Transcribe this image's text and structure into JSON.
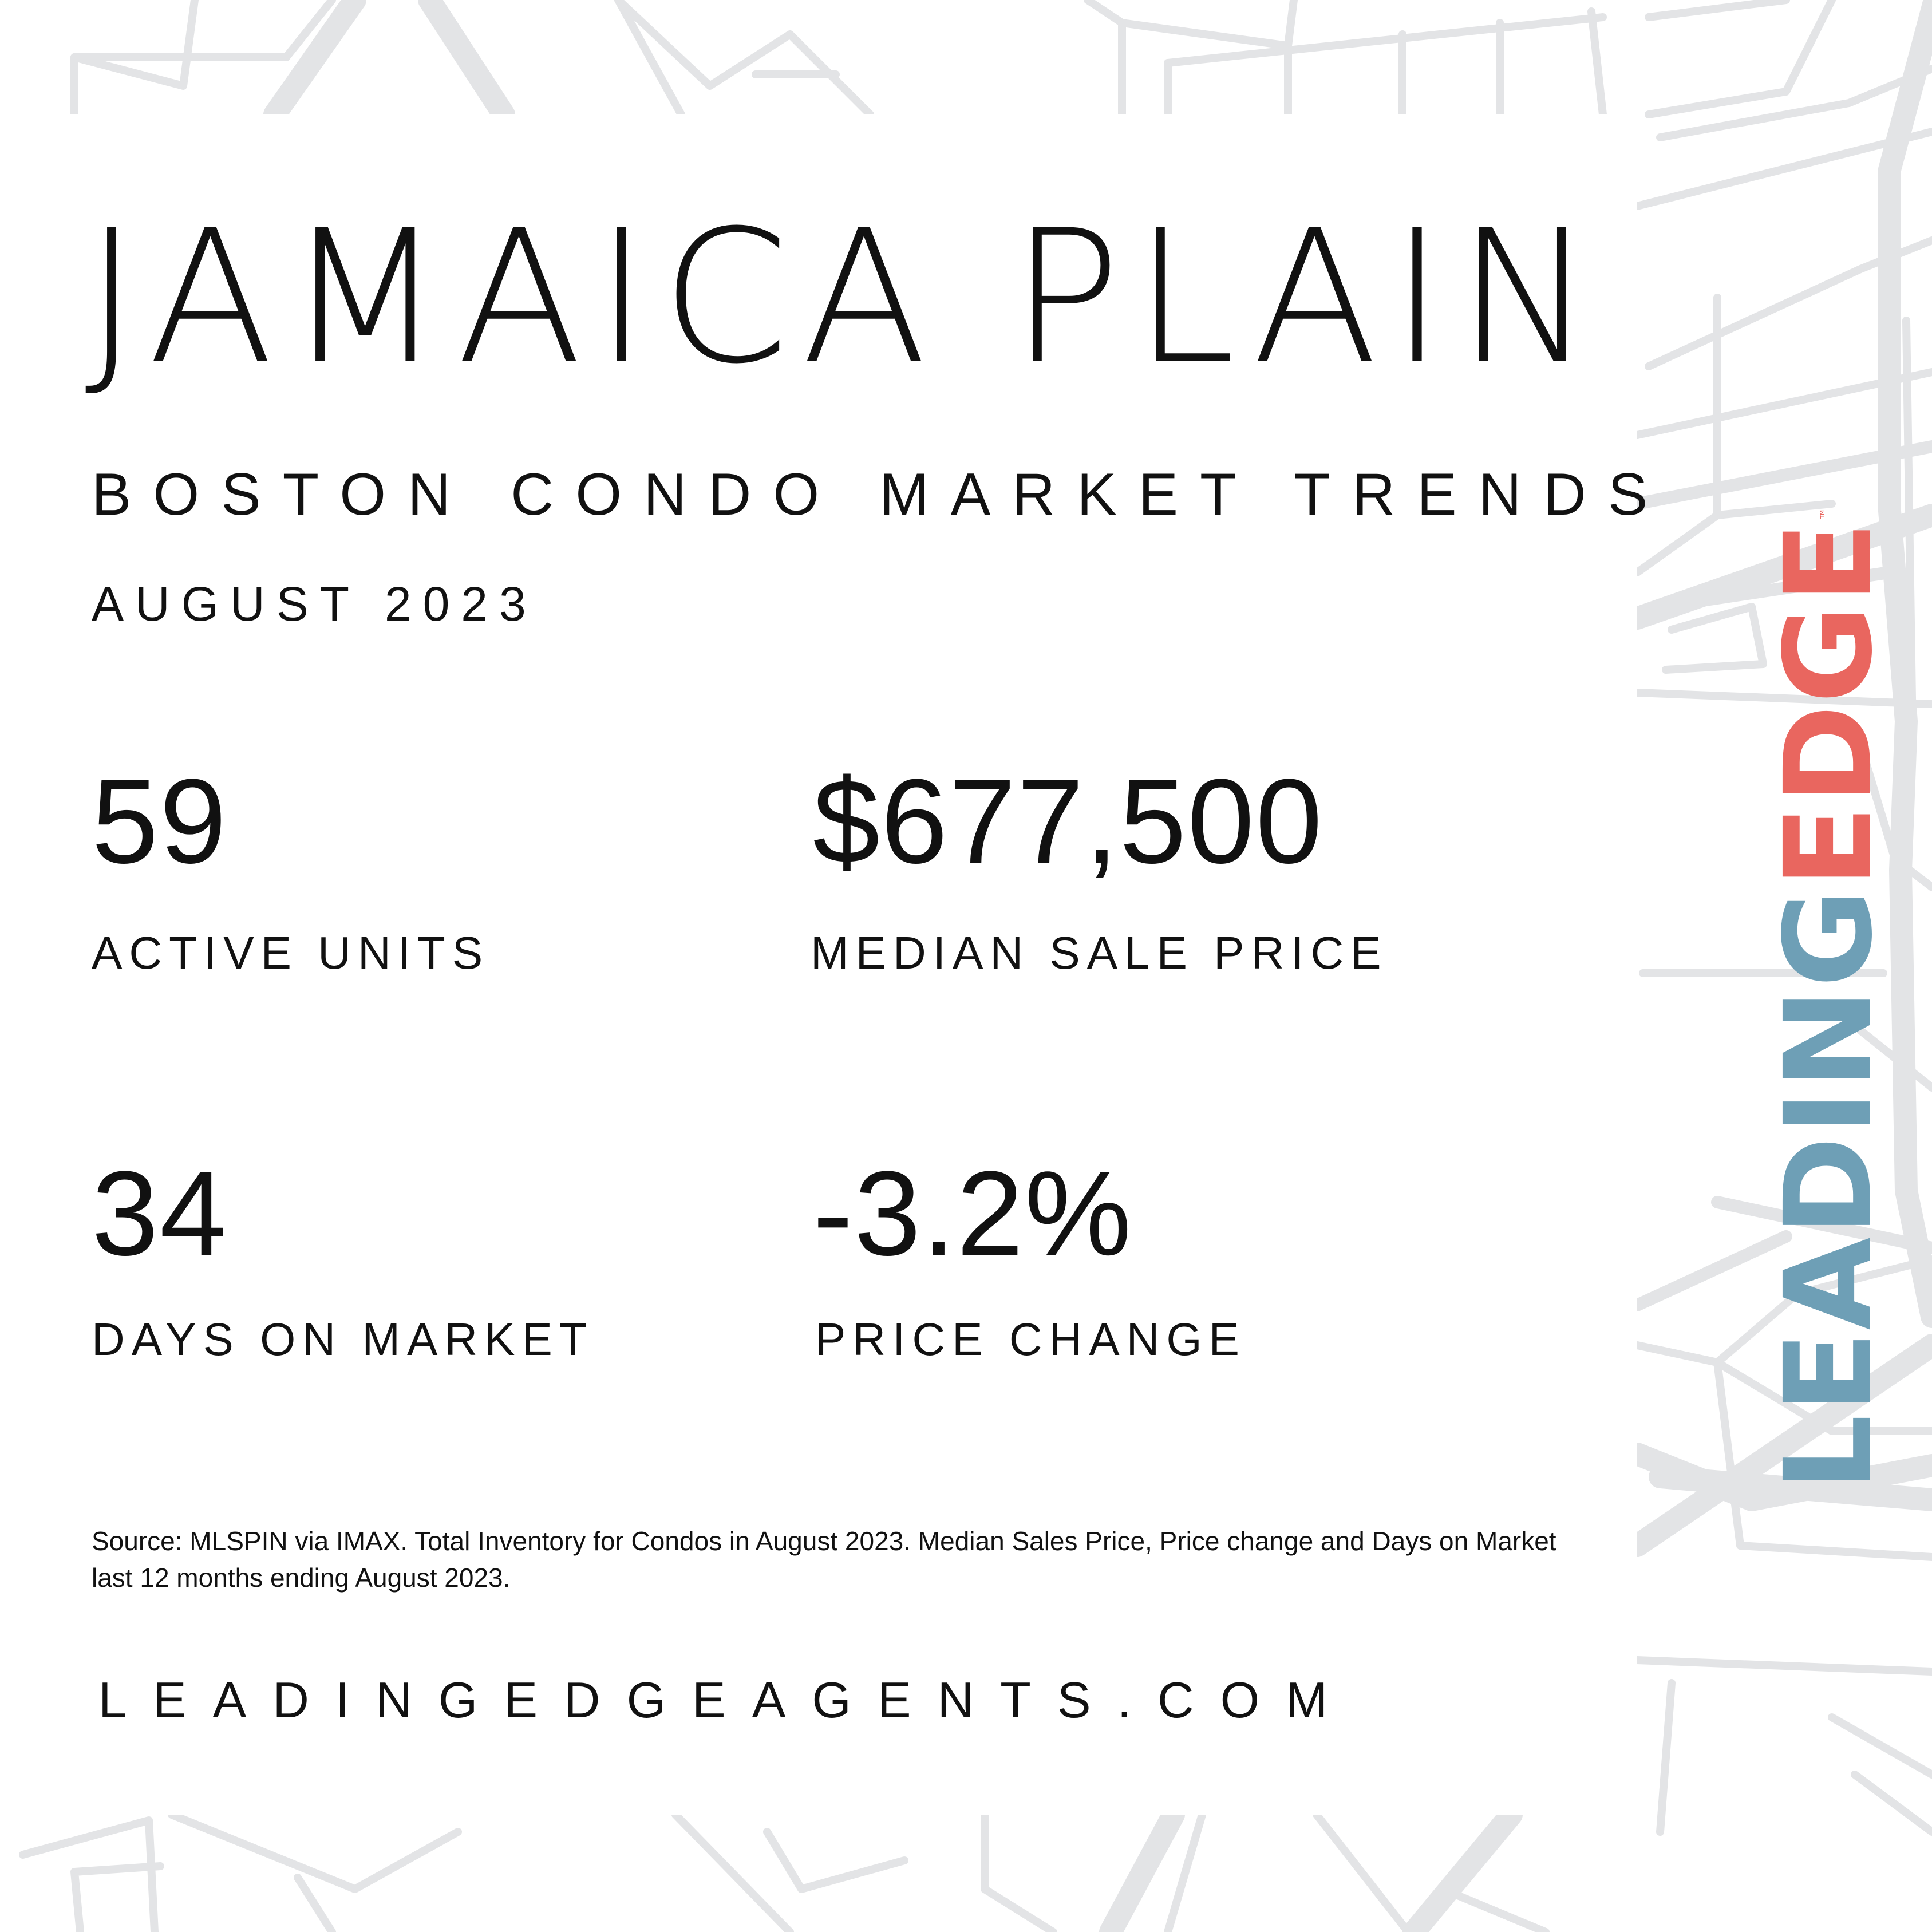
{
  "header": {
    "title": "JAMAICA PLAIN",
    "subtitle": "BOSTON CONDO MARKET TRENDS",
    "date": "AUGUST 2023"
  },
  "stats": [
    {
      "value": "59",
      "label": "ACTIVE UNITS"
    },
    {
      "value": "$677,500",
      "label": "MEDIAN SALE PRICE"
    },
    {
      "value": "34",
      "label": "DAYS ON MARKET"
    },
    {
      "value": "-3.2%",
      "label": "PRICE CHANGE"
    }
  ],
  "footer": {
    "source": "Source: MLSPIN via IMAX. Total Inventory for Condos in August 2023. Median Sales Price, Price change and Days on Market last 12 months ending August 2023.",
    "website": "LEADINGEDGEAGENTS.COM"
  },
  "logo": {
    "part1": "LEADING",
    "part2": "EDGE",
    "trademark": "™",
    "color_part1": "#6e9fb6",
    "color_part2": "#e9665f"
  },
  "background": {
    "map_line_color": "#e3e4e6",
    "panel_color": "#ffffff"
  }
}
